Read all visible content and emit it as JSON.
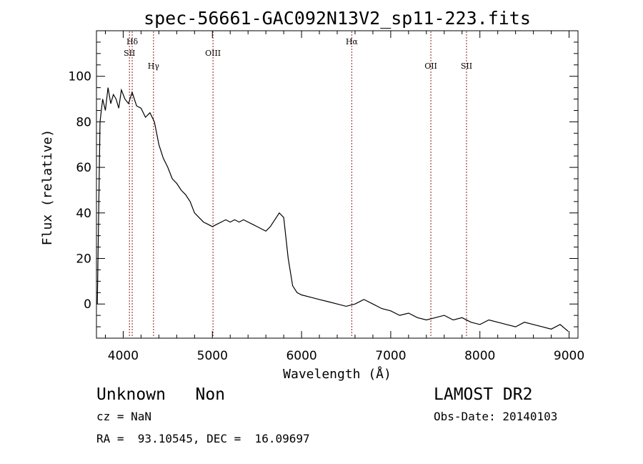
{
  "chart_data": {
    "type": "line",
    "title": "spec-56661-GAC092N13V2_sp11-223.fits",
    "xlabel": "Wavelength (Å)",
    "ylabel": "Flux (relative)",
    "xlim": [
      3700,
      9100
    ],
    "ylim": [
      -15,
      120
    ],
    "x_ticks": [
      4000,
      5000,
      6000,
      7000,
      8000,
      9000
    ],
    "y_ticks": [
      0,
      20,
      40,
      60,
      80,
      100
    ],
    "grid": false,
    "line_color": "#000000",
    "marker_color": "#8b1a1a",
    "line_markers": [
      {
        "label": "Hδ",
        "x": 4101,
        "row": 0
      },
      {
        "label": "SII",
        "x": 4070,
        "row": 1
      },
      {
        "label": "Hγ",
        "x": 4340,
        "row": 2
      },
      {
        "label": "OIII",
        "x": 5007,
        "row": 1
      },
      {
        "label": "Hα",
        "x": 6563,
        "row": 0
      },
      {
        "label": "OII",
        "x": 7450,
        "row": 2
      },
      {
        "label": "SII",
        "x": 7850,
        "row": 2
      }
    ],
    "series": [
      {
        "x": [
          3710,
          3740,
          3770,
          3800,
          3830,
          3860,
          3890,
          3920,
          3950,
          3980,
          4020,
          4060,
          4100,
          4150,
          4200,
          4250,
          4300,
          4350,
          4400,
          4450,
          4500,
          4550,
          4600,
          4650,
          4700,
          4750,
          4800,
          4850,
          4900,
          4950,
          5000,
          5050,
          5100,
          5150,
          5200,
          5250,
          5300,
          5350,
          5400,
          5450,
          5500,
          5550,
          5600,
          5650,
          5700,
          5750,
          5800,
          5850,
          5900,
          5950,
          6000,
          6100,
          6200,
          6300,
          6400,
          6500,
          6600,
          6700,
          6800,
          6900,
          7000,
          7100,
          7200,
          7300,
          7400,
          7500,
          7600,
          7700,
          7800,
          7900,
          8000,
          8100,
          8200,
          8300,
          8400,
          8500,
          8600,
          8700,
          8800,
          8900,
          8990
        ],
        "y": [
          0,
          80,
          90,
          85,
          95,
          88,
          92,
          90,
          86,
          94,
          90,
          88,
          93,
          87,
          86,
          82,
          84,
          80,
          70,
          64,
          60,
          55,
          53,
          50,
          48,
          45,
          40,
          38,
          36,
          35,
          34,
          35,
          36,
          37,
          36,
          37,
          36,
          37,
          36,
          35,
          34,
          33,
          32,
          34,
          37,
          40,
          38,
          20,
          8,
          5,
          4,
          3,
          2,
          1,
          0,
          -1,
          0,
          2,
          0,
          -2,
          -3,
          -5,
          -4,
          -6,
          -7,
          -6,
          -5,
          -7,
          -6,
          -8,
          -9,
          -7,
          -8,
          -9,
          -10,
          -8,
          -9,
          -10,
          -11,
          -9,
          -12
        ]
      }
    ]
  },
  "info": {
    "class_line": "Unknown   Non",
    "redshift_line": "cz = NaN",
    "coords_line": "RA =  93.10545, DEC =  16.09697",
    "survey": "LAMOST DR2",
    "obs_date": "Obs-Date: 20140103"
  }
}
